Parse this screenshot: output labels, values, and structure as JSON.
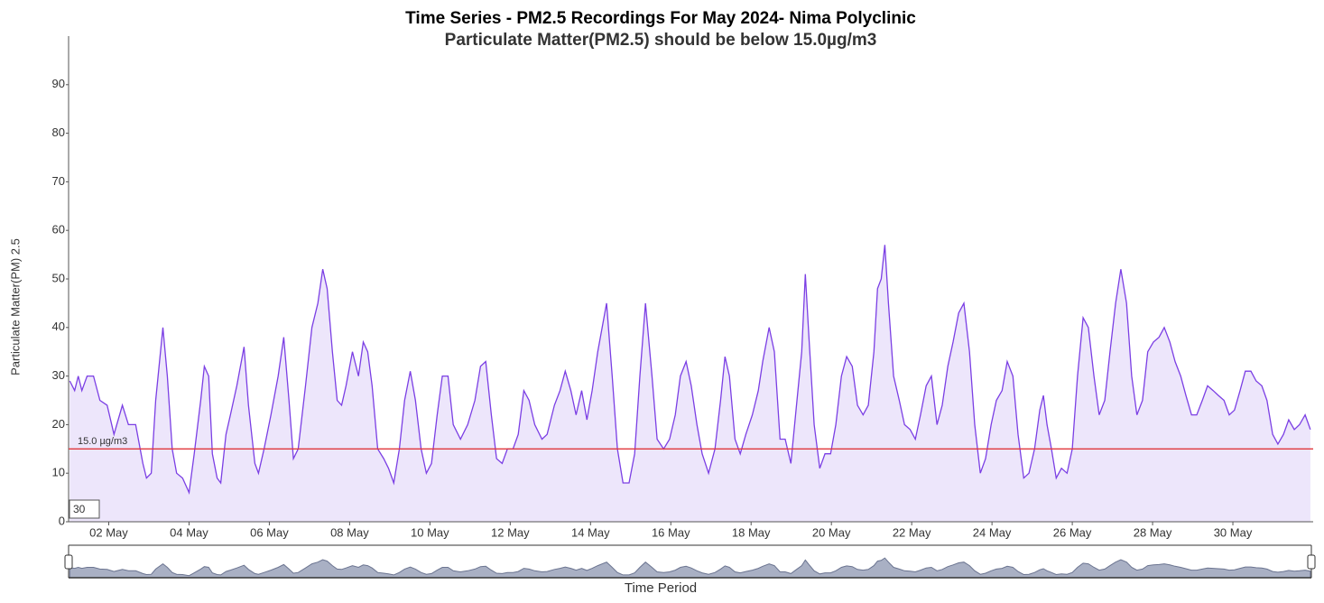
{
  "chart_data": {
    "type": "line",
    "title": "Time Series - PM2.5 Recordings For May 2024- Nima Polyclinic",
    "subtitle": "Particulate Matter(PM2.5) should be below 15.0µg/m3",
    "y_label": "Particulate Matter(PM) 2.5",
    "x_label": "Time Period",
    "color": "#7b3fe4",
    "fill_color": "#ede6fb",
    "threshold": {
      "value": 15,
      "label": "15.0 µg/m3",
      "color": "#e0383c"
    },
    "rolling_period": 30,
    "xlim": [
      1,
      32
    ],
    "ylim": [
      0,
      100
    ],
    "yticks": [
      0,
      10,
      20,
      30,
      40,
      50,
      60,
      70,
      80,
      90
    ],
    "xticks": [
      {
        "value": 2,
        "label": "02 May"
      },
      {
        "value": 4,
        "label": "04 May"
      },
      {
        "value": 6,
        "label": "06 May"
      },
      {
        "value": 8,
        "label": "08 May"
      },
      {
        "value": 10,
        "label": "10 May"
      },
      {
        "value": 12,
        "label": "12 May"
      },
      {
        "value": 14,
        "label": "14 May"
      },
      {
        "value": 16,
        "label": "16 May"
      },
      {
        "value": 18,
        "label": "18 May"
      },
      {
        "value": 20,
        "label": "20 May"
      },
      {
        "value": 22,
        "label": "22 May"
      },
      {
        "value": 24,
        "label": "24 May"
      },
      {
        "value": 26,
        "label": "26 May"
      },
      {
        "value": 28,
        "label": "28 May"
      },
      {
        "value": 30,
        "label": "30 May"
      }
    ],
    "x": [
      1.03,
      1.15,
      1.24,
      1.33,
      1.46,
      1.62,
      1.78,
      1.96,
      2.13,
      2.34,
      2.49,
      2.67,
      2.85,
      2.94,
      3.06,
      3.17,
      3.35,
      3.46,
      3.58,
      3.69,
      3.84,
      4.0,
      4.13,
      4.29,
      4.38,
      4.49,
      4.58,
      4.7,
      4.79,
      4.92,
      5.03,
      5.19,
      5.37,
      5.48,
      5.64,
      5.73,
      5.87,
      6.04,
      6.22,
      6.36,
      6.49,
      6.6,
      6.72,
      6.9,
      7.06,
      7.21,
      7.33,
      7.44,
      7.57,
      7.69,
      7.8,
      7.91,
      8.07,
      8.22,
      8.34,
      8.45,
      8.56,
      8.7,
      8.85,
      8.97,
      9.1,
      9.24,
      9.37,
      9.51,
      9.64,
      9.78,
      9.91,
      10.04,
      10.18,
      10.31,
      10.45,
      10.58,
      10.76,
      10.94,
      11.12,
      11.26,
      11.39,
      11.53,
      11.66,
      11.8,
      11.93,
      12.07,
      12.2,
      12.34,
      12.47,
      12.61,
      12.79,
      12.92,
      13.1,
      13.24,
      13.37,
      13.51,
      13.64,
      13.78,
      13.91,
      14.04,
      14.18,
      14.4,
      14.54,
      14.67,
      14.81,
      14.96,
      15.1,
      15.23,
      15.37,
      15.53,
      15.66,
      15.82,
      15.97,
      16.11,
      16.24,
      16.38,
      16.51,
      16.65,
      16.78,
      16.94,
      17.1,
      17.24,
      17.35,
      17.46,
      17.6,
      17.73,
      17.87,
      18.03,
      18.18,
      18.29,
      18.45,
      18.58,
      18.72,
      18.85,
      18.99,
      19.12,
      19.26,
      19.35,
      19.44,
      19.57,
      19.71,
      19.84,
      19.98,
      20.11,
      20.25,
      20.38,
      20.52,
      20.65,
      20.79,
      20.92,
      21.06,
      21.15,
      21.24,
      21.33,
      21.42,
      21.55,
      21.69,
      21.82,
      21.96,
      22.09,
      22.22,
      22.36,
      22.49,
      22.63,
      22.76,
      22.9,
      23.03,
      23.17,
      23.3,
      23.44,
      23.57,
      23.71,
      23.84,
      23.98,
      24.11,
      24.25,
      24.38,
      24.52,
      24.65,
      24.79,
      24.92,
      25.06,
      25.19,
      25.28,
      25.37,
      25.48,
      25.6,
      25.73,
      25.87,
      26.0,
      26.13,
      26.27,
      26.4,
      26.54,
      26.67,
      26.81,
      26.94,
      27.08,
      27.21,
      27.35,
      27.48,
      27.61,
      27.75,
      27.88,
      28.02,
      28.16,
      28.29,
      28.43,
      28.56,
      28.7,
      28.83,
      28.97,
      29.1,
      29.24,
      29.37,
      29.51,
      29.64,
      29.78,
      29.91,
      30.04,
      30.18,
      30.31,
      30.45,
      30.58,
      30.72,
      30.85,
      30.99,
      31.12,
      31.26,
      31.39,
      31.53,
      31.66,
      31.8,
      31.93
    ],
    "values": [
      29,
      27,
      30,
      27,
      30,
      30,
      25,
      24,
      18,
      24,
      20,
      20,
      12,
      9,
      10,
      25,
      40,
      30,
      15,
      10,
      9,
      6,
      14,
      25,
      32,
      30,
      14,
      9,
      8,
      18,
      22,
      28,
      36,
      24,
      12,
      10,
      15,
      22,
      30,
      38,
      25,
      13,
      15,
      28,
      40,
      45,
      52,
      48,
      35,
      25,
      24,
      28,
      35,
      30,
      37,
      35,
      28,
      15,
      13,
      11,
      8,
      15,
      25,
      31,
      25,
      15,
      10,
      12,
      22,
      30,
      30,
      20,
      17,
      20,
      25,
      32,
      33,
      22,
      13,
      12,
      15,
      15,
      18,
      27,
      25,
      20,
      17,
      18,
      24,
      27,
      31,
      27,
      22,
      27,
      21,
      27,
      35,
      45,
      30,
      15,
      8,
      8,
      14,
      30,
      45,
      30,
      17,
      15,
      17,
      22,
      30,
      33,
      28,
      20,
      14,
      10,
      15,
      25,
      34,
      30,
      17,
      14,
      18,
      22,
      27,
      33,
      40,
      35,
      17,
      17,
      12,
      23,
      35,
      51,
      38,
      20,
      11,
      14,
      14,
      20,
      30,
      34,
      32,
      24,
      22,
      24,
      35,
      48,
      50,
      57,
      45,
      30,
      25,
      20,
      19,
      17,
      22,
      28,
      30,
      20,
      24,
      32,
      37,
      43,
      45,
      35,
      20,
      10,
      13,
      20,
      25,
      27,
      33,
      30,
      18,
      9,
      10,
      15,
      23,
      26,
      20,
      15,
      9,
      11,
      10,
      15,
      30,
      42,
      40,
      30,
      22,
      25,
      35,
      45,
      52,
      45,
      30,
      22,
      25,
      35,
      37,
      38,
      40,
      37,
      33,
      30,
      26,
      22,
      22,
      25,
      28,
      27,
      26,
      25,
      22,
      23,
      27,
      31,
      31,
      29,
      28,
      25,
      18,
      16,
      18,
      21,
      19,
      20,
      22,
      19
    ]
  }
}
